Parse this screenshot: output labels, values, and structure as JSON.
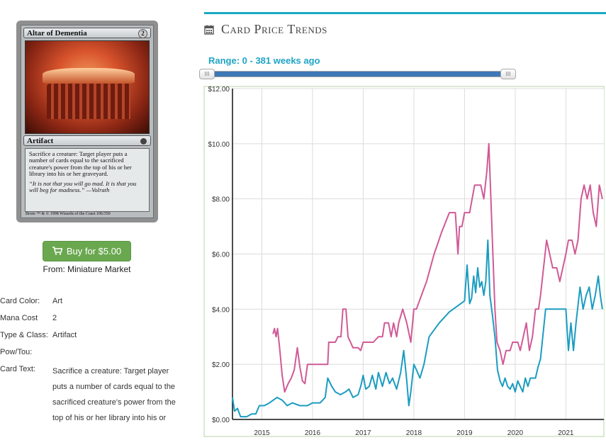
{
  "card": {
    "name": "Altar of Dementia",
    "mana_symbol": "2",
    "type_line": "Artifact",
    "rules_text": "Sacrifice a creature: Target player puts a number of cards equal to the sacrificed creature's power from the top of his or her library into his or her graveyard.",
    "flavor_text": "“It is not that you will go mad. It is that you will beg for madness.” —Volrath",
    "artist_line": "Brom",
    "copyright_line": "™ & © 1998 Wizards of the Coast 106/350"
  },
  "buy": {
    "label": "Buy for $5.00",
    "icon": "shopping-cart-icon",
    "color": "#6aa84f"
  },
  "from_line": "From: Miniature Market",
  "attributes": [
    {
      "label": "Card Color:",
      "value": "Art"
    },
    {
      "label": "Mana Cost",
      "value": "2"
    },
    {
      "label": "Type & Class:",
      "value": "Artifact"
    },
    {
      "label": "Pow/Tou:",
      "value": ""
    },
    {
      "label": "Card Text:",
      "value": "Sacrifice a creature: Target player puts a number of cards equal to the sacrificed creature's power from the top of his or her library into his or"
    }
  ],
  "trends": {
    "icon": "calendar-icon",
    "title": "Card Price Trends",
    "accent_color": "#19a9c6",
    "range_label": "Range: 0 - 381 weeks ago",
    "range_handle_left_glyph": "III",
    "range_handle_right_glyph": "III",
    "range_min_weeks_ago": 381,
    "range_max_weeks_ago": 0
  },
  "chart_data": {
    "type": "line",
    "title": "",
    "xlabel": "",
    "ylabel": "",
    "ylim": [
      0,
      12
    ],
    "xlim": [
      2014.42,
      2021.75
    ],
    "y_ticks": [
      "$0.00",
      "$2.00",
      "$4.00",
      "$6.00",
      "$8.00",
      "$10.00",
      "$12.00"
    ],
    "y_tick_values": [
      0,
      2,
      4,
      6,
      8,
      10,
      12
    ],
    "x_ticks": [
      "2015",
      "2016",
      "2017",
      "2018",
      "2019",
      "2020",
      "2021"
    ],
    "x_tick_values": [
      2015,
      2016,
      2017,
      2018,
      2019,
      2020,
      2021
    ],
    "grid": true,
    "series": [
      {
        "color": "#d05a96",
        "points": [
          [
            2015.22,
            3.1
          ],
          [
            2015.25,
            3.3
          ],
          [
            2015.28,
            3.0
          ],
          [
            2015.31,
            3.3
          ],
          [
            2015.35,
            2.6
          ],
          [
            2015.4,
            1.6
          ],
          [
            2015.45,
            1.0
          ],
          [
            2015.52,
            1.3
          ],
          [
            2015.58,
            1.5
          ],
          [
            2015.64,
            1.8
          ],
          [
            2015.7,
            2.6
          ],
          [
            2015.75,
            1.9
          ],
          [
            2015.8,
            1.4
          ],
          [
            2015.85,
            1.3
          ],
          [
            2015.9,
            2.0
          ],
          [
            2016.1,
            2.0
          ],
          [
            2016.3,
            2.0
          ],
          [
            2016.32,
            2.8
          ],
          [
            2016.45,
            2.8
          ],
          [
            2016.5,
            3.0
          ],
          [
            2016.56,
            3.0
          ],
          [
            2016.6,
            4.0
          ],
          [
            2016.66,
            4.0
          ],
          [
            2016.7,
            3.0
          ],
          [
            2016.8,
            2.6
          ],
          [
            2016.9,
            2.6
          ],
          [
            2016.95,
            2.5
          ],
          [
            2017.0,
            2.8
          ],
          [
            2017.2,
            2.8
          ],
          [
            2017.3,
            3.0
          ],
          [
            2017.38,
            3.0
          ],
          [
            2017.42,
            3.5
          ],
          [
            2017.5,
            3.5
          ],
          [
            2017.55,
            3.0
          ],
          [
            2017.6,
            3.5
          ],
          [
            2017.66,
            3.0
          ],
          [
            2017.7,
            3.5
          ],
          [
            2017.78,
            4.0
          ],
          [
            2017.86,
            3.5
          ],
          [
            2017.94,
            2.8
          ],
          [
            2018.0,
            4.0
          ],
          [
            2018.05,
            4.0
          ],
          [
            2018.15,
            4.5
          ],
          [
            2018.25,
            5.0
          ],
          [
            2018.4,
            6.0
          ],
          [
            2018.55,
            6.8
          ],
          [
            2018.7,
            7.5
          ],
          [
            2018.82,
            7.5
          ],
          [
            2018.87,
            6.0
          ],
          [
            2018.9,
            7.0
          ],
          [
            2018.95,
            7.0
          ],
          [
            2019.0,
            7.5
          ],
          [
            2019.1,
            7.5
          ],
          [
            2019.15,
            8.0
          ],
          [
            2019.2,
            8.5
          ],
          [
            2019.32,
            8.5
          ],
          [
            2019.38,
            8.0
          ],
          [
            2019.44,
            9.0
          ],
          [
            2019.48,
            10.0
          ],
          [
            2019.52,
            8.0
          ],
          [
            2019.56,
            6.0
          ],
          [
            2019.6,
            4.0
          ],
          [
            2019.64,
            2.8
          ],
          [
            2019.7,
            2.5
          ],
          [
            2019.76,
            2.0
          ],
          [
            2019.82,
            2.5
          ],
          [
            2019.9,
            2.5
          ],
          [
            2019.95,
            2.8
          ],
          [
            2020.05,
            2.8
          ],
          [
            2020.1,
            2.5
          ],
          [
            2020.16,
            3.0
          ],
          [
            2020.22,
            3.5
          ],
          [
            2020.28,
            2.5
          ],
          [
            2020.34,
            3.0
          ],
          [
            2020.4,
            4.0
          ],
          [
            2020.46,
            4.0
          ],
          [
            2020.5,
            4.5
          ],
          [
            2020.56,
            5.5
          ],
          [
            2020.62,
            6.5
          ],
          [
            2020.68,
            6.0
          ],
          [
            2020.74,
            5.5
          ],
          [
            2020.82,
            5.5
          ],
          [
            2020.88,
            5.0
          ],
          [
            2020.94,
            5.5
          ],
          [
            2021.0,
            6.0
          ],
          [
            2021.05,
            6.5
          ],
          [
            2021.12,
            6.5
          ],
          [
            2021.18,
            6.0
          ],
          [
            2021.24,
            6.5
          ],
          [
            2021.3,
            8.0
          ],
          [
            2021.36,
            8.5
          ],
          [
            2021.42,
            8.0
          ],
          [
            2021.48,
            8.5
          ],
          [
            2021.54,
            7.5
          ],
          [
            2021.6,
            7.0
          ],
          [
            2021.66,
            8.5
          ],
          [
            2021.72,
            8.0
          ]
        ]
      },
      {
        "color": "#1b9cc1",
        "points": [
          [
            2014.42,
            0.8
          ],
          [
            2014.46,
            0.3
          ],
          [
            2014.52,
            0.4
          ],
          [
            2014.58,
            0.1
          ],
          [
            2014.7,
            0.1
          ],
          [
            2014.8,
            0.2
          ],
          [
            2014.88,
            0.2
          ],
          [
            2014.95,
            0.5
          ],
          [
            2015.05,
            0.5
          ],
          [
            2015.15,
            0.6
          ],
          [
            2015.3,
            0.8
          ],
          [
            2015.4,
            0.7
          ],
          [
            2015.5,
            0.5
          ],
          [
            2015.6,
            0.6
          ],
          [
            2015.75,
            0.5
          ],
          [
            2015.9,
            0.5
          ],
          [
            2016.0,
            0.6
          ],
          [
            2016.15,
            0.6
          ],
          [
            2016.25,
            0.8
          ],
          [
            2016.3,
            1.5
          ],
          [
            2016.38,
            1.2
          ],
          [
            2016.45,
            1.0
          ],
          [
            2016.55,
            0.9
          ],
          [
            2016.65,
            1.0
          ],
          [
            2016.72,
            1.1
          ],
          [
            2016.8,
            0.8
          ],
          [
            2016.9,
            0.9
          ],
          [
            2016.95,
            1.2
          ],
          [
            2017.0,
            1.6
          ],
          [
            2017.05,
            1.1
          ],
          [
            2017.12,
            1.2
          ],
          [
            2017.18,
            1.6
          ],
          [
            2017.25,
            1.1
          ],
          [
            2017.3,
            1.7
          ],
          [
            2017.38,
            1.2
          ],
          [
            2017.45,
            1.7
          ],
          [
            2017.52,
            1.3
          ],
          [
            2017.58,
            1.5
          ],
          [
            2017.66,
            1.1
          ],
          [
            2017.74,
            1.7
          ],
          [
            2017.8,
            2.5
          ],
          [
            2017.86,
            1.4
          ],
          [
            2017.9,
            0.5
          ],
          [
            2017.94,
            1.0
          ],
          [
            2018.0,
            2.0
          ],
          [
            2018.05,
            1.8
          ],
          [
            2018.12,
            1.5
          ],
          [
            2018.2,
            2.0
          ],
          [
            2018.3,
            3.0
          ],
          [
            2018.5,
            3.5
          ],
          [
            2018.7,
            3.9
          ],
          [
            2019.0,
            4.3
          ],
          [
            2019.05,
            5.6
          ],
          [
            2019.1,
            4.2
          ],
          [
            2019.14,
            4.4
          ],
          [
            2019.18,
            5.2
          ],
          [
            2019.22,
            4.6
          ],
          [
            2019.26,
            5.5
          ],
          [
            2019.3,
            4.8
          ],
          [
            2019.34,
            5.0
          ],
          [
            2019.38,
            4.5
          ],
          [
            2019.42,
            5.0
          ],
          [
            2019.46,
            6.5
          ],
          [
            2019.5,
            4.5
          ],
          [
            2019.55,
            3.8
          ],
          [
            2019.6,
            3.0
          ],
          [
            2019.65,
            1.8
          ],
          [
            2019.7,
            1.4
          ],
          [
            2019.75,
            1.2
          ],
          [
            2019.8,
            1.5
          ],
          [
            2019.85,
            1.2
          ],
          [
            2019.9,
            1.1
          ],
          [
            2019.95,
            1.3
          ],
          [
            2020.0,
            1.0
          ],
          [
            2020.05,
            1.4
          ],
          [
            2020.1,
            1.2
          ],
          [
            2020.15,
            1.0
          ],
          [
            2020.2,
            1.5
          ],
          [
            2020.25,
            1.2
          ],
          [
            2020.3,
            1.5
          ],
          [
            2020.4,
            1.5
          ],
          [
            2020.45,
            1.9
          ],
          [
            2020.5,
            2.2
          ],
          [
            2020.6,
            4.0
          ],
          [
            2020.8,
            4.0
          ],
          [
            2021.0,
            4.0
          ],
          [
            2021.05,
            2.5
          ],
          [
            2021.1,
            3.5
          ],
          [
            2021.15,
            2.5
          ],
          [
            2021.2,
            3.5
          ],
          [
            2021.28,
            4.8
          ],
          [
            2021.34,
            4.0
          ],
          [
            2021.4,
            4.5
          ],
          [
            2021.46,
            4.8
          ],
          [
            2021.52,
            4.0
          ],
          [
            2021.58,
            4.5
          ],
          [
            2021.64,
            5.2
          ],
          [
            2021.68,
            4.5
          ],
          [
            2021.72,
            4.0
          ]
        ]
      }
    ]
  }
}
